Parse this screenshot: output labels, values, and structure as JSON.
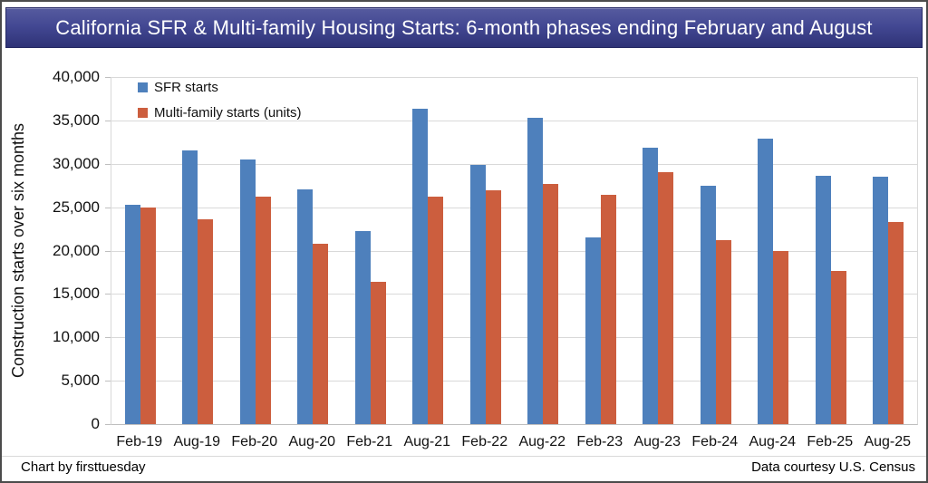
{
  "footer": {
    "left": "Chart by firsttuesday",
    "right": "Data courtesy U.S. Census"
  },
  "banner": {
    "gradient_top": "#565b9f",
    "gradient_bottom": "#2f3377",
    "text_color": "#ffffff"
  },
  "chart_data": {
    "type": "bar",
    "title": "California SFR & Multi-family Housing Starts: 6-month phases ending February and August",
    "xlabel": "",
    "ylabel": "Construction starts over six months",
    "categories": [
      "Feb-19",
      "Aug-19",
      "Feb-20",
      "Aug-20",
      "Feb-21",
      "Aug-21",
      "Feb-22",
      "Aug-22",
      "Feb-23",
      "Aug-23",
      "Feb-24",
      "Aug-24",
      "Feb-25",
      "Aug-25"
    ],
    "series": [
      {
        "name": "SFR starts",
        "color": "#4e80bc",
        "values": [
          25300,
          31500,
          30500,
          27100,
          22200,
          36300,
          29900,
          35300,
          21500,
          31900,
          27500,
          32900,
          28600,
          28500
        ]
      },
      {
        "name": "Multi-family starts (units)",
        "color": "#cc5e3e",
        "values": [
          25000,
          23600,
          26200,
          20800,
          16400,
          26200,
          26900,
          27700,
          26400,
          29000,
          21200,
          19900,
          17600,
          23300
        ]
      }
    ],
    "ylim": [
      0,
      40000
    ],
    "y_tick_step": 5000,
    "y_ticks": [
      "0",
      "5,000",
      "10,000",
      "15,000",
      "20,000",
      "25,000",
      "30,000",
      "35,000",
      "40,000"
    ],
    "grid": true,
    "legend_position": "top-left",
    "gridline_color": "#d9d9d9",
    "axis_line_color": "#bfbfbf"
  }
}
